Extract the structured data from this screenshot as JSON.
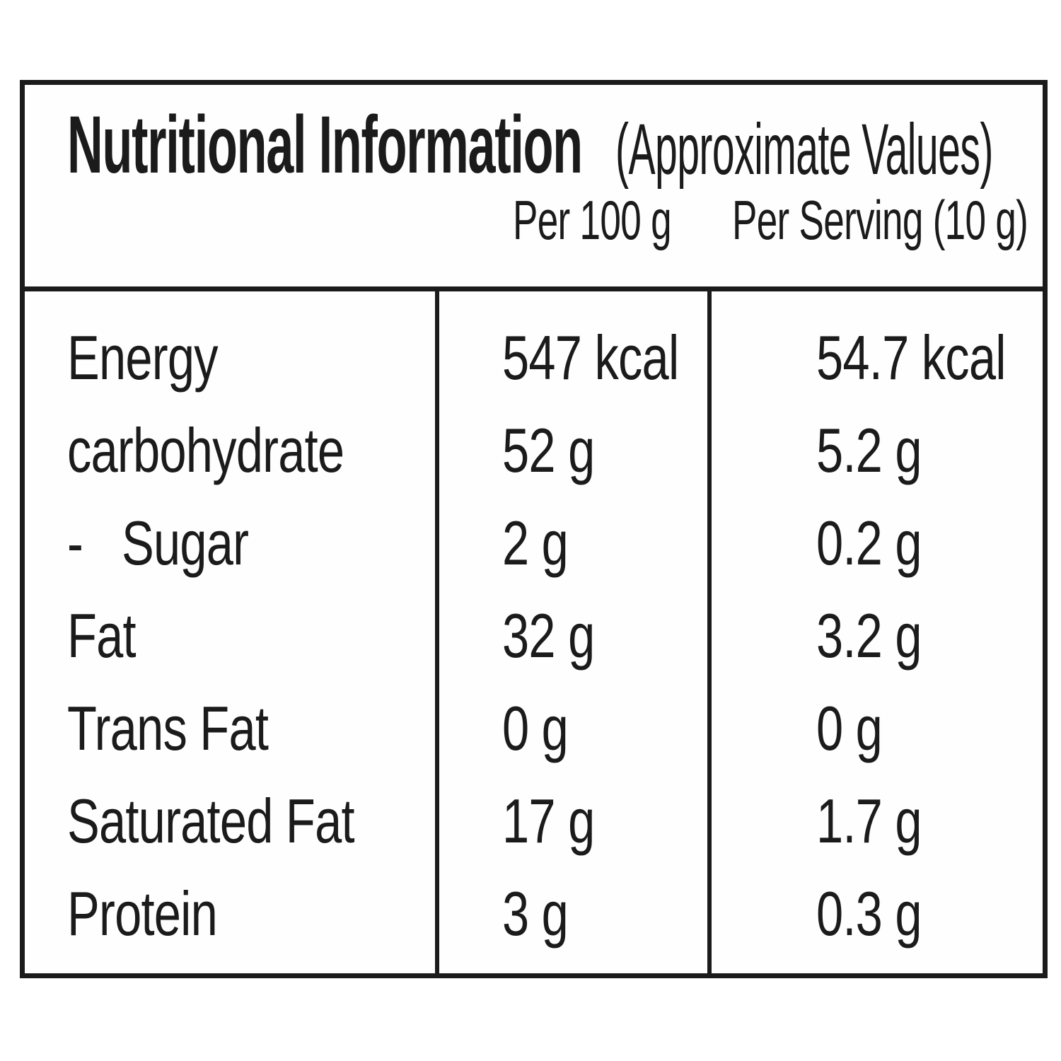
{
  "label": {
    "title": "Nutritional Information",
    "title_suffix": "(Approximate Values)",
    "columns": {
      "per_100g": "Per 100 g",
      "per_serving": "Per Serving (10 g)"
    },
    "rows": [
      {
        "name": "Energy",
        "per_100g": "547 kcal",
        "per_serving": "54.7 kcal"
      },
      {
        "name": "carbohydrate",
        "per_100g": "52 g",
        "per_serving": "5.2 g"
      },
      {
        "name": "-   Sugar",
        "per_100g": "2 g",
        "per_serving": "0.2 g"
      },
      {
        "name": "Fat",
        "per_100g": "32 g",
        "per_serving": "3.2 g"
      },
      {
        "name": "Trans Fat",
        "per_100g": "0 g",
        "per_serving": "0 g"
      },
      {
        "name": "Saturated Fat",
        "per_100g": "17 g",
        "per_serving": "1.7 g"
      },
      {
        "name": "Protein",
        "per_100g": "3 g",
        "per_serving": "0.3 g"
      }
    ],
    "colors": {
      "text": "#1b1b1b",
      "border": "#1b1b1b",
      "background": "#ffffff"
    }
  }
}
